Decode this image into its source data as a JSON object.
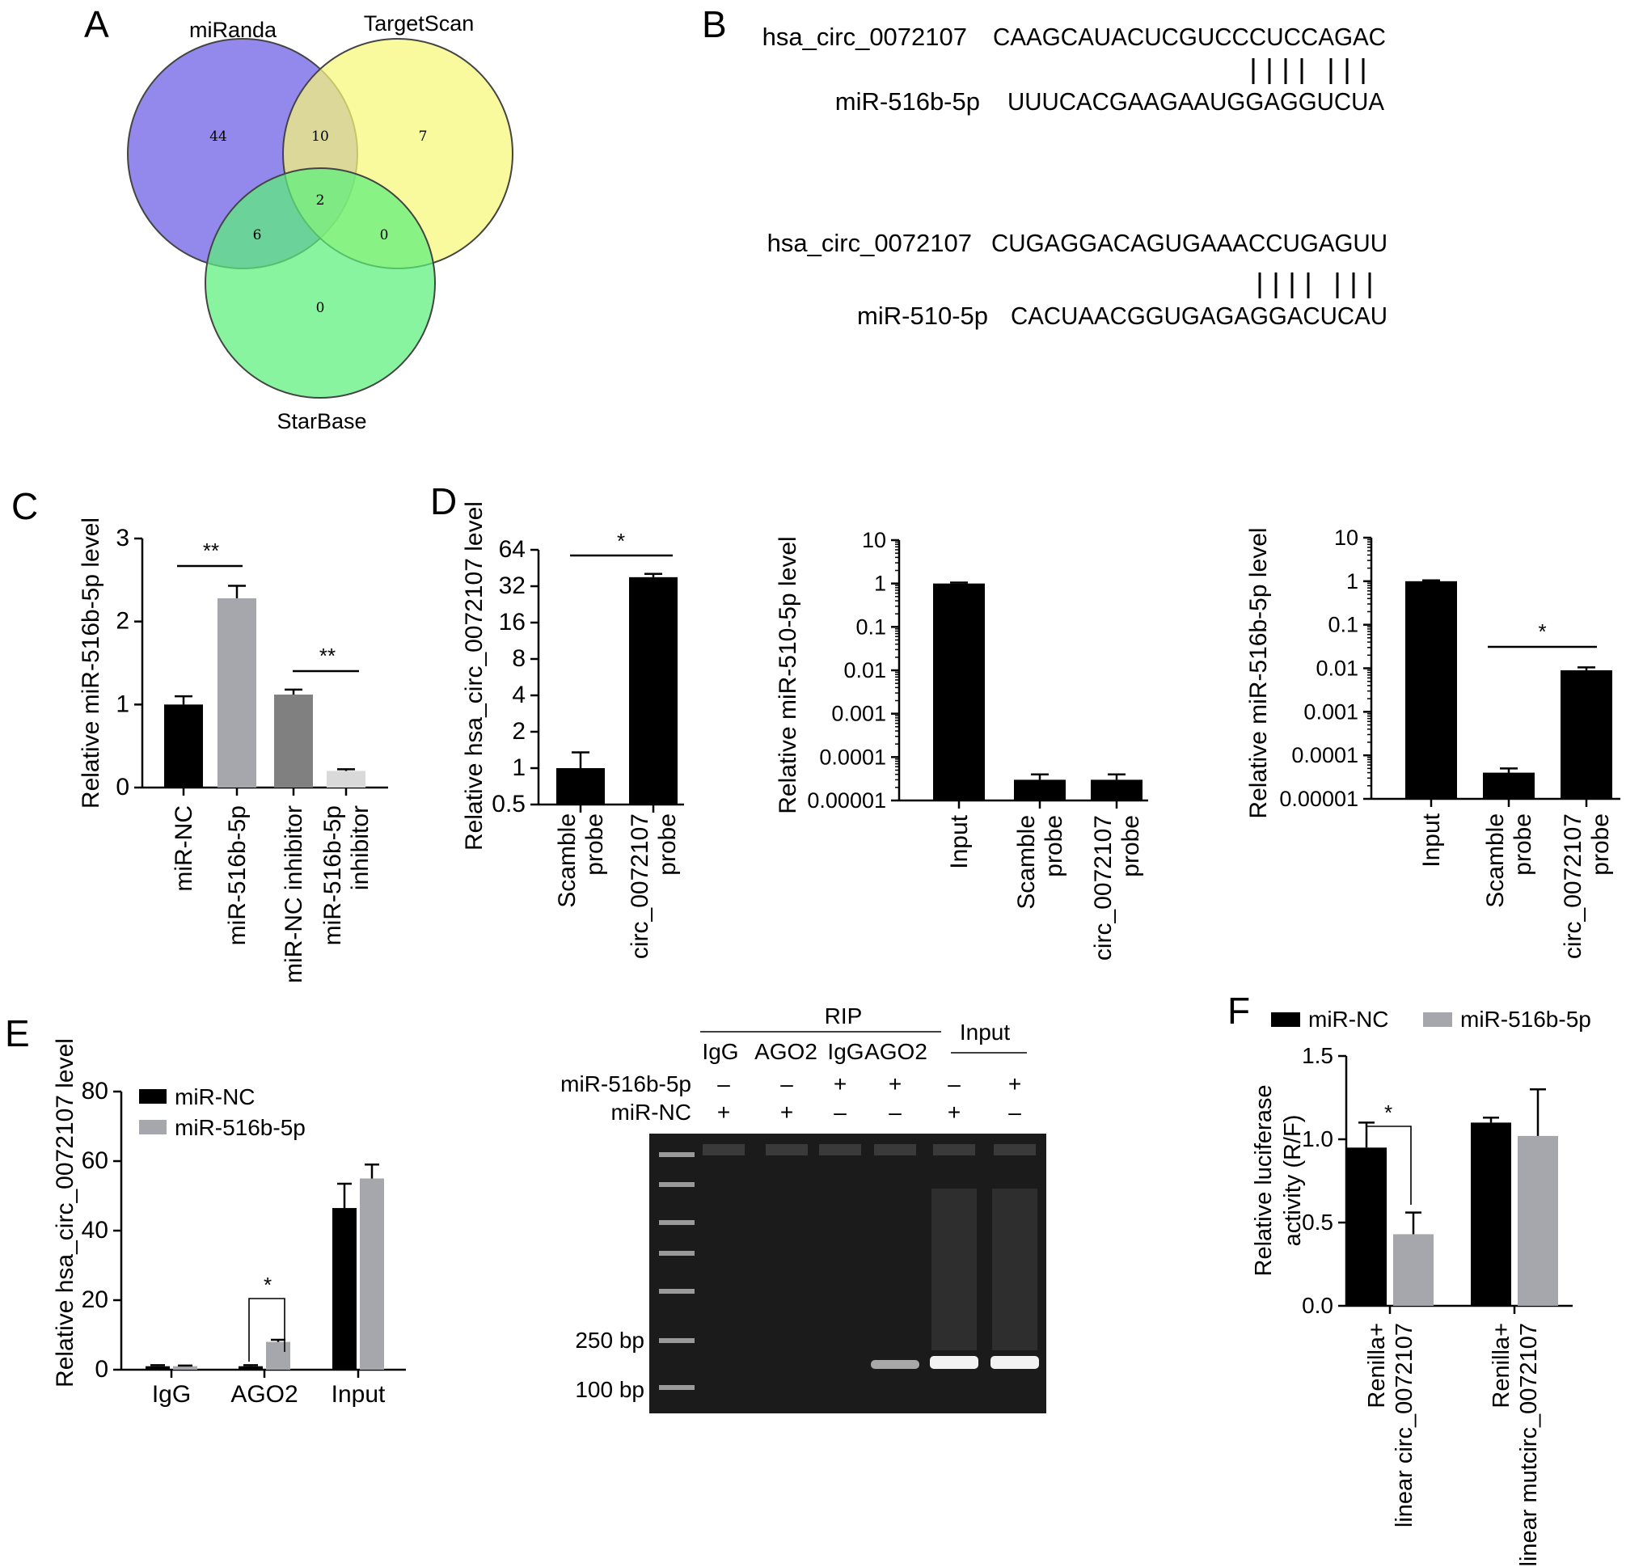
{
  "panel_labels": {
    "a": "A",
    "b": "B",
    "c": "C",
    "d": "D",
    "e": "E",
    "f": "F"
  },
  "colors": {
    "black": "#000000",
    "gray": "#a6a6ad",
    "dark_gray": "#808080",
    "light_gray": "#d9d9d9",
    "venn_mir": "#6a5ce6",
    "venn_ts": "#f7f778",
    "venn_sb": "#5cf07a",
    "gel_bg": "#1b1b1b"
  },
  "chart_data": [
    {
      "panel": "A",
      "type": "venn",
      "sets": [
        "miRanda",
        "TargetScan",
        "StarBase"
      ],
      "regions": {
        "miRanda_only": "44",
        "miRanda_TargetScan": "10",
        "TargetScan_only": "7",
        "all_three": "2",
        "miRanda_StarBase": "6",
        "TargetScan_StarBase": "0",
        "StarBase_only": "0"
      }
    },
    {
      "panel": "B",
      "type": "alignment",
      "pairs": [
        {
          "circ_name": "hsa_circ_0072107",
          "circ_seq": "CAAGCAUACUCGUCCCUCCAGAC",
          "mir_name": "miR-516b-5p",
          "mir_seq": "UUUCACGAAGAAUGGAGGUCUA",
          "bonds": "|||| |||"
        },
        {
          "circ_name": "hsa_circ_0072107",
          "circ_seq": "CUGAGGACAGUGAAACCUGAGUU",
          "mir_name": "miR-510-5p",
          "mir_seq": "CACUAACGGUGAGAGGACUCAU",
          "bonds": "|||| |||"
        }
      ]
    },
    {
      "panel": "C",
      "type": "bar",
      "ylabel": "Relative miR-516b-5p level",
      "ylim": [
        0,
        3
      ],
      "yticks": [
        "0",
        "1",
        "2",
        "3"
      ],
      "categories": [
        "miR-NC",
        "miR-516b-5p",
        "miR-NC inhibitor",
        "miR-516b-5p inhibitor"
      ],
      "category_lines": [
        [
          "miR-NC"
        ],
        [
          "miR-516b-5p"
        ],
        [
          "miR-NC inhibitor"
        ],
        [
          "miR-516b-5p",
          "inhibitor"
        ]
      ],
      "values": [
        1.0,
        2.28,
        1.12,
        0.2
      ],
      "errors": [
        0.1,
        0.15,
        0.06,
        0.02
      ],
      "colors": [
        "#000000",
        "#a6a6ad",
        "#808080",
        "#d9d9d9"
      ],
      "significance": [
        {
          "from": 0,
          "to": 1,
          "label": "**"
        },
        {
          "from": 2,
          "to": 3,
          "label": "**"
        }
      ]
    },
    {
      "panel": "D1",
      "type": "bar",
      "scale": "log2",
      "ylabel": "Relative hsa_circ_0072107 level",
      "ylim": [
        0.5,
        64
      ],
      "yticks": [
        "0.5",
        "1",
        "2",
        "4",
        "8",
        "16",
        "32",
        "64"
      ],
      "categories": [
        "Scamble probe",
        "circ_0072107 probe"
      ],
      "category_lines": [
        [
          "Scamble",
          "probe"
        ],
        [
          "circ_0072107",
          "probe"
        ]
      ],
      "values": [
        1.0,
        38.0
      ],
      "errors_upper": [
        1.35,
        40.5
      ],
      "significance": [
        {
          "from": 0,
          "to": 1,
          "label": "*"
        }
      ]
    },
    {
      "panel": "D2",
      "type": "bar",
      "scale": "log10",
      "ylabel": "Relative miR-510-5p level",
      "ylim": [
        1e-05,
        10
      ],
      "yticks": [
        "0.00001",
        "0.0001",
        "0.001",
        "0.01",
        "0.1",
        "1",
        "10"
      ],
      "categories": [
        "Input",
        "Scamble probe",
        "circ_0072107 probe"
      ],
      "category_lines": [
        [
          "Input"
        ],
        [
          "Scamble",
          "probe"
        ],
        [
          "circ_0072107",
          "probe"
        ]
      ],
      "values": [
        1.0,
        3e-05,
        3e-05
      ],
      "errors_upper": [
        1.05,
        4e-05,
        4e-05
      ]
    },
    {
      "panel": "D3",
      "type": "bar",
      "scale": "log10",
      "ylabel": "Relative miR-516b-5p level",
      "ylim": [
        1e-05,
        10
      ],
      "yticks": [
        "0.00001",
        "0.0001",
        "0.001",
        "0.01",
        "0.1",
        "1",
        "10"
      ],
      "categories": [
        "Input",
        "Scamble probe",
        "circ_0072107 probe"
      ],
      "category_lines": [
        [
          "Input"
        ],
        [
          "Scamble",
          "probe"
        ],
        [
          "circ_0072107",
          "probe"
        ]
      ],
      "values": [
        1.0,
        4e-05,
        0.009
      ],
      "errors_upper": [
        1.05,
        5e-05,
        0.0105
      ],
      "significance": [
        {
          "from": 1,
          "to": 2,
          "label": "*"
        }
      ]
    },
    {
      "panel": "E",
      "type": "bar",
      "ylabel": "Relative hsa_circ_0072107 level",
      "ylim": [
        0,
        80
      ],
      "yticks": [
        "0",
        "20",
        "40",
        "60",
        "80"
      ],
      "categories": [
        "IgG",
        "AGO2",
        "Input"
      ],
      "series": [
        {
          "name": "miR-NC",
          "color": "#000000",
          "values": [
            1,
            1,
            46.5
          ],
          "errors": [
            0.3,
            0.3,
            7.0
          ]
        },
        {
          "name": "miR-516b-5p",
          "color": "#a6a6ad",
          "values": [
            1,
            8,
            55
          ],
          "errors": [
            0.2,
            0.6,
            4.0
          ]
        }
      ],
      "significance": [
        {
          "category": 1,
          "label": "*"
        }
      ]
    },
    {
      "panel": "E-gel",
      "type": "gel",
      "header": {
        "rip": "RIP",
        "input": "Input"
      },
      "lanes": [
        "IgG",
        "AGO2",
        "IgG",
        "AGO2"
      ],
      "row_labels": [
        "miR-516b-5p",
        "miR-NC"
      ],
      "mir516": [
        "–",
        "–",
        "+",
        "+",
        "–",
        "+"
      ],
      "mirnc": [
        "+",
        "+",
        "–",
        "–",
        "+",
        "–"
      ],
      "markers": [
        "250 bp",
        "100 bp"
      ],
      "band_intensity": [
        0,
        0,
        0,
        0.55,
        1.0,
        1.0
      ]
    },
    {
      "panel": "F",
      "type": "bar",
      "ylabel_lines": [
        "Relative luciferase",
        "activity (R/F)"
      ],
      "ylim": [
        0,
        1.5
      ],
      "yticks": [
        "0.0",
        "0.5",
        "1.0",
        "1.5"
      ],
      "categories": [
        "Renilla+ linear circ_0072107",
        "Renilla+ linear mutcirc_0072107"
      ],
      "category_lines": [
        [
          "Renilla+",
          "linear circ_0072107"
        ],
        [
          "Renilla+",
          "linear mutcirc_0072107"
        ]
      ],
      "series": [
        {
          "name": "miR-NC",
          "color": "#000000",
          "values": [
            0.95,
            1.1
          ],
          "errors": [
            0.15,
            0.03
          ]
        },
        {
          "name": "miR-516b-5p",
          "color": "#a6a6ad",
          "values": [
            0.43,
            1.02
          ],
          "errors": [
            0.13,
            0.28
          ]
        }
      ],
      "significance": [
        {
          "category": 0,
          "label": "*"
        }
      ]
    }
  ]
}
